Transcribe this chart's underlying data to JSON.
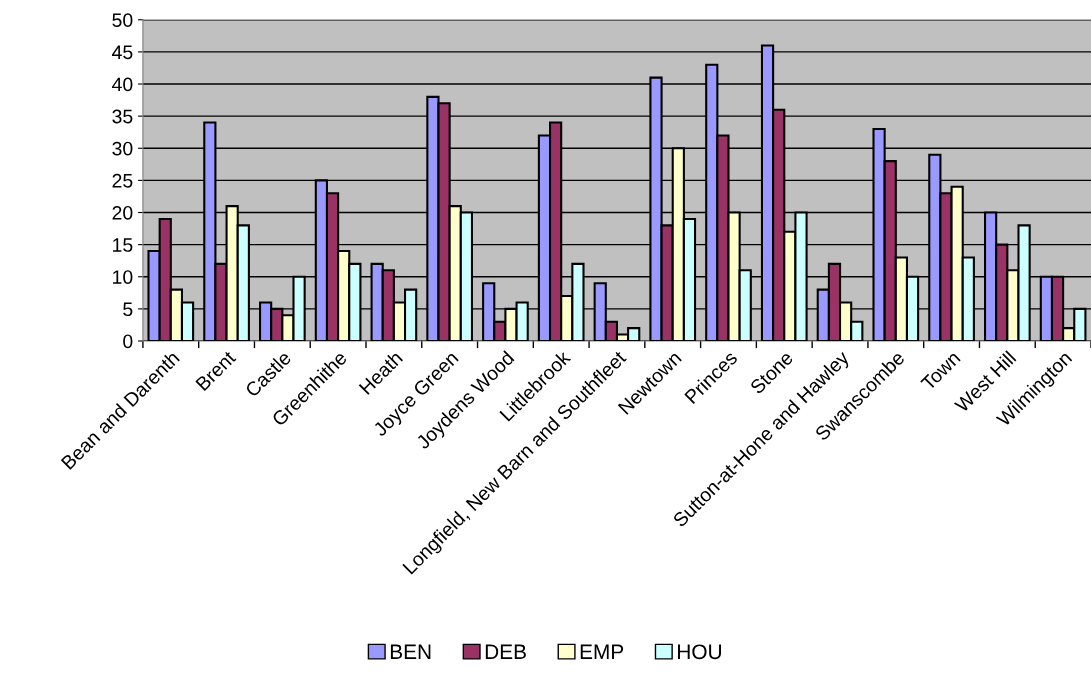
{
  "chart_data": {
    "type": "bar",
    "categories": [
      "Bean and Darenth",
      "Brent",
      "Castle",
      "Greenhithe",
      "Heath",
      "Joyce Green",
      "Joydens Wood",
      "Littlebrook",
      "Longfield, New Barn and Southfleet",
      "Newtown",
      "Princes",
      "Stone",
      "Sutton-at-Hone and Hawley",
      "Swanscombe",
      "Town",
      "West Hill",
      "Wilmington"
    ],
    "series": [
      {
        "name": "BEN",
        "color": "#9999ff",
        "values": [
          14,
          34,
          6,
          25,
          12,
          38,
          9,
          32,
          9,
          41,
          43,
          46,
          8,
          33,
          29,
          20,
          10
        ]
      },
      {
        "name": "DEB",
        "color": "#993366",
        "values": [
          19,
          12,
          5,
          23,
          11,
          37,
          3,
          34,
          3,
          18,
          32,
          36,
          12,
          28,
          23,
          15,
          10
        ]
      },
      {
        "name": "EMP",
        "color": "#ffffcc",
        "values": [
          8,
          21,
          4,
          14,
          6,
          21,
          5,
          7,
          1,
          30,
          20,
          17,
          6,
          13,
          24,
          11,
          2
        ]
      },
      {
        "name": "HOU",
        "color": "#ccffff",
        "values": [
          6,
          18,
          10,
          12,
          8,
          20,
          6,
          12,
          2,
          19,
          11,
          20,
          3,
          10,
          13,
          18,
          5
        ]
      }
    ],
    "ylim": [
      0,
      50
    ],
    "yticks": [
      0,
      5,
      10,
      15,
      20,
      25,
      30,
      35,
      40,
      45,
      50
    ],
    "grid": "y",
    "legend": "bottom"
  }
}
